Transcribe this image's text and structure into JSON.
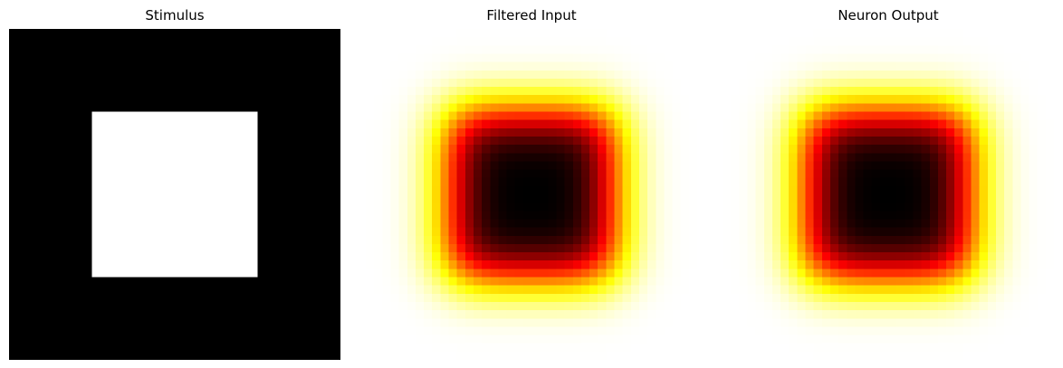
{
  "chart_data": [
    {
      "type": "heatmap",
      "title": "Stimulus",
      "grid": false,
      "axes": "off",
      "rows": 40,
      "cols": 40,
      "colormap": "gray",
      "stimulus_square": {
        "row_start": 10,
        "row_end": 30,
        "col_start": 10,
        "col_end": 30
      },
      "values": "binary square: 1 inside [10,30) x [10,30), 0 elsewhere"
    },
    {
      "type": "heatmap",
      "title": "Filtered Input",
      "grid": false,
      "axes": "off",
      "rows": 40,
      "cols": 40,
      "colormap": "hot_r",
      "values": "gaussian-blurred stimulus (sigma about 3 px), darkest at center"
    },
    {
      "type": "heatmap",
      "title": "Neuron Output",
      "grid": false,
      "axes": "off",
      "rows": 40,
      "cols": 40,
      "colormap": "hot_r",
      "values": "same profile as filtered input"
    }
  ]
}
